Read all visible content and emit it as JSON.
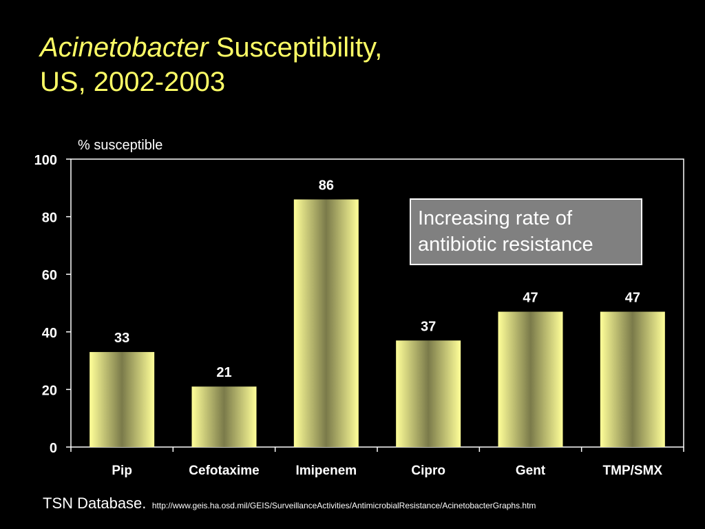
{
  "slide": {
    "title_italic": "Acinetobacter",
    "title_rest": " Susceptibility,",
    "title_line2": "US, 2002-2003",
    "callout": "Increasing rate of antibiotic resistance",
    "source_label": "TSN Database.",
    "source_url": "http://www.geis.ha.osd.mil/GEIS/SurveillanceActivities/AntimicrobialResistance/AcinetobacterGraphs.htm"
  },
  "colors": {
    "background": "#000000",
    "title": "#ffff66",
    "bar_light": "#ffff99",
    "bar_dark": "#7a7a4a",
    "axis": "#ffffff",
    "callout_fill": "#808080"
  },
  "chart_data": {
    "type": "bar",
    "ylabel": "% susceptible",
    "xlabel": "",
    "categories": [
      "Pip",
      "Cefotaxime",
      "Imipenem",
      "Cipro",
      "Gent",
      "TMP/SMX"
    ],
    "values": [
      33,
      21,
      86,
      37,
      47,
      47
    ],
    "data_labels": [
      "33",
      "21",
      "86",
      "37",
      "47",
      "47"
    ],
    "ylim": [
      0,
      100
    ],
    "yticks": [
      0,
      20,
      40,
      60,
      80,
      100
    ],
    "ytick_labels": [
      "0",
      "20",
      "40",
      "60",
      "80",
      "100"
    ],
    "grid": false,
    "legend": "none"
  }
}
